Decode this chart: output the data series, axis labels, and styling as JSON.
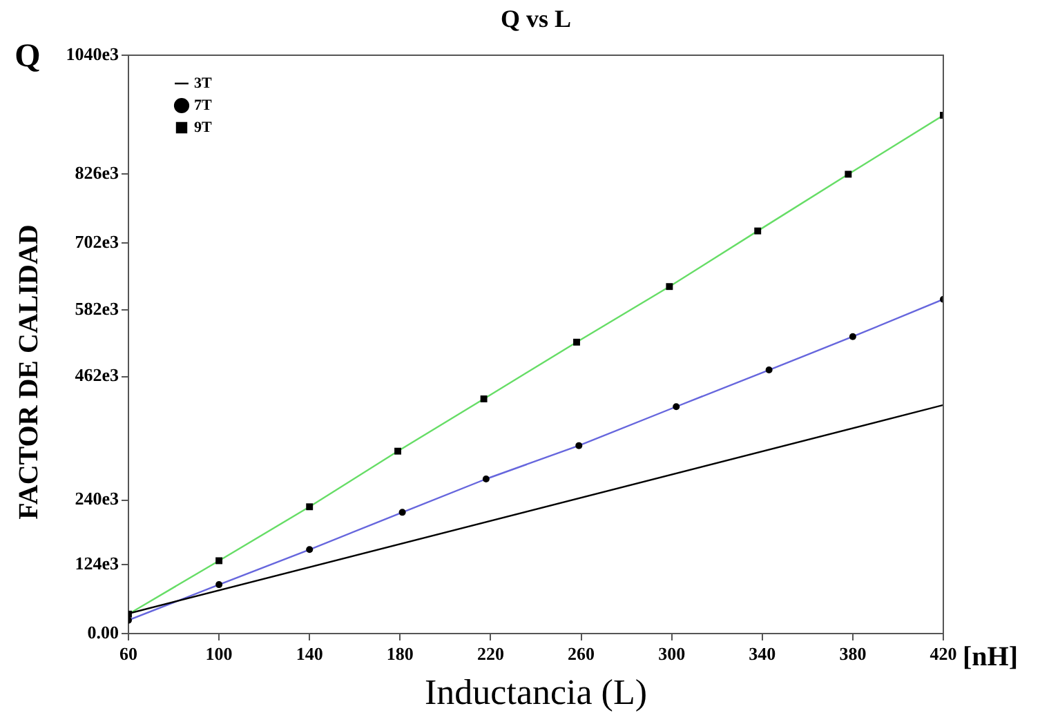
{
  "chart_data": {
    "type": "line",
    "title": "Q vs L",
    "xlabel": "Inductancia (L)",
    "ylabel": "FACTOR DE CALIDAD",
    "annotations": [
      "Q",
      "[nH]"
    ],
    "xlim": [
      60,
      420
    ],
    "xticks": [
      60,
      100,
      140,
      180,
      220,
      260,
      300,
      340,
      380,
      420
    ],
    "ylim": [
      0,
      1040000
    ],
    "yticks": [
      {
        "value": 0,
        "label": "0.00"
      },
      {
        "value": 124000,
        "label": "124e3"
      },
      {
        "value": 240000,
        "label": "240e3"
      },
      {
        "value": 462000,
        "label": "462e3"
      },
      {
        "value": 582000,
        "label": "582e3"
      },
      {
        "value": 702000,
        "label": "702e3"
      },
      {
        "value": 826000,
        "label": "826e3"
      },
      {
        "value": 1040000,
        "label": "1040e3"
      }
    ],
    "grid": false,
    "legend": "top left",
    "series": [
      {
        "name": "3T",
        "color": "#000000",
        "x": [
          60,
          420
        ],
        "values": [
          36000,
          411000
        ]
      },
      {
        "name": "7T",
        "color": "#6666dd",
        "marker": "circle",
        "x": [
          60,
          100,
          140,
          181,
          218,
          259,
          302,
          343,
          380,
          420
        ],
        "values": [
          24000,
          88000,
          151000,
          218000,
          278000,
          338000,
          408000,
          474000,
          534000,
          601000
        ]
      },
      {
        "name": "9T",
        "color": "#66dd66",
        "marker": "square",
        "x": [
          60,
          100,
          140,
          179,
          217,
          258,
          299,
          338,
          378,
          420
        ],
        "values": [
          35000,
          131000,
          228000,
          328000,
          422000,
          524000,
          624000,
          724000,
          826000,
          932000
        ]
      }
    ]
  }
}
